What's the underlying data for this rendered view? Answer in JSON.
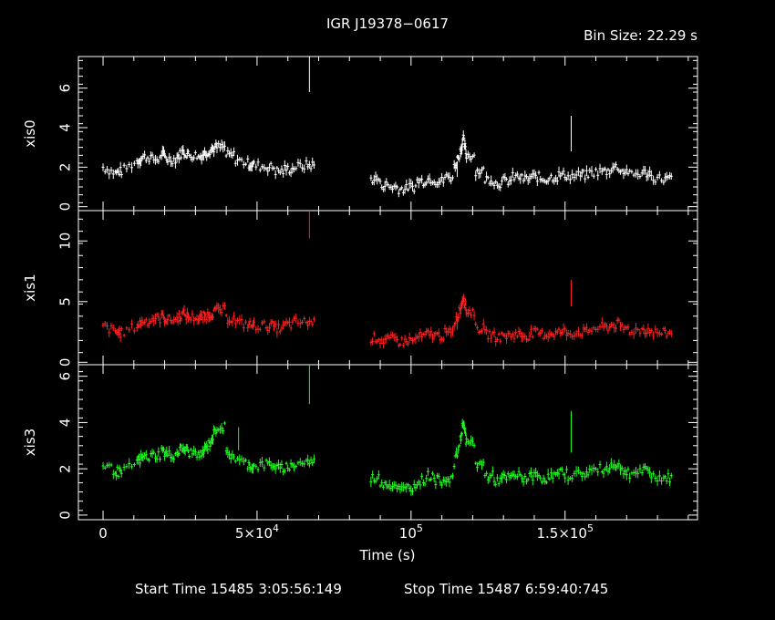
{
  "chart_data": {
    "type": "scatter",
    "title": "IGR J19378−0617",
    "bin_size_label": "Bin Size: 22.29 s",
    "xlabel": "Time (s)",
    "xlim": [
      -8000,
      193000
    ],
    "x_ticks": [
      {
        "value": 0,
        "label": "0"
      },
      {
        "value": 50000,
        "label": "5×10",
        "sup": "4"
      },
      {
        "value": 100000,
        "label": "10",
        "sup": "5"
      },
      {
        "value": 150000,
        "label": "1.5×10",
        "sup": "5"
      }
    ],
    "footer": {
      "start_label": "Start Time 15485  3:05:56:149",
      "stop_label": "Stop Time 15487  6:59:40:745"
    },
    "panels": [
      {
        "ylabel": "xis0",
        "color": "#ffffff",
        "ylim": [
          -0.2,
          7.6
        ],
        "yticks": [
          0,
          2,
          4,
          6
        ],
        "gap_start": 67000,
        "gap_end": 86000,
        "segments": [
          {
            "x": 0,
            "y": 2.0
          },
          {
            "x": 4000,
            "y": 1.7
          },
          {
            "x": 6000,
            "y": 1.8
          },
          {
            "x": 11000,
            "y": 2.3
          },
          {
            "x": 13000,
            "y": 2.5
          },
          {
            "x": 16000,
            "y": 2.4
          },
          {
            "x": 19000,
            "y": 2.7
          },
          {
            "x": 21000,
            "y": 2.4
          },
          {
            "x": 24000,
            "y": 2.5
          },
          {
            "x": 26000,
            "y": 2.8
          },
          {
            "x": 28000,
            "y": 2.6
          },
          {
            "x": 31000,
            "y": 2.5
          },
          {
            "x": 33000,
            "y": 2.7
          },
          {
            "x": 35000,
            "y": 2.9
          },
          {
            "x": 37000,
            "y": 3.0
          },
          {
            "x": 40000,
            "y": 2.6
          },
          {
            "x": 43000,
            "y": 2.4
          },
          {
            "x": 47000,
            "y": 2.2
          },
          {
            "x": 49000,
            "y": 2.1
          },
          {
            "x": 53000,
            "y": 2.0
          },
          {
            "x": 56000,
            "y": 1.8
          },
          {
            "x": 59000,
            "y": 1.9
          },
          {
            "x": 62000,
            "y": 2.0
          },
          {
            "x": 66000,
            "y": 2.1
          },
          {
            "x": 87000,
            "y": 1.4
          },
          {
            "x": 90000,
            "y": 1.1
          },
          {
            "x": 93000,
            "y": 1.0
          },
          {
            "x": 96000,
            "y": 0.9
          },
          {
            "x": 99000,
            "y": 1.0
          },
          {
            "x": 102000,
            "y": 1.3
          },
          {
            "x": 105000,
            "y": 1.4
          },
          {
            "x": 108000,
            "y": 1.3
          },
          {
            "x": 111000,
            "y": 1.5
          },
          {
            "x": 114000,
            "y": 2.0
          },
          {
            "x": 116000,
            "y": 2.8
          },
          {
            "x": 117000,
            "y": 3.4
          },
          {
            "x": 118000,
            "y": 2.6
          },
          {
            "x": 121000,
            "y": 1.8
          },
          {
            "x": 124000,
            "y": 1.4
          },
          {
            "x": 127000,
            "y": 1.2
          },
          {
            "x": 130000,
            "y": 1.3
          },
          {
            "x": 133000,
            "y": 1.5
          },
          {
            "x": 136000,
            "y": 1.4
          },
          {
            "x": 139000,
            "y": 1.5
          },
          {
            "x": 142000,
            "y": 1.4
          },
          {
            "x": 145000,
            "y": 1.5
          },
          {
            "x": 148000,
            "y": 1.6
          },
          {
            "x": 151000,
            "y": 1.5
          },
          {
            "x": 155000,
            "y": 1.6
          },
          {
            "x": 158000,
            "y": 1.7
          },
          {
            "x": 162000,
            "y": 1.8
          },
          {
            "x": 165000,
            "y": 2.0
          },
          {
            "x": 168000,
            "y": 1.8
          },
          {
            "x": 171000,
            "y": 1.6
          },
          {
            "x": 175000,
            "y": 1.7
          },
          {
            "x": 178000,
            "y": 1.5
          },
          {
            "x": 182000,
            "y": 1.4
          }
        ],
        "spikes": [
          {
            "x": 67000,
            "y_low": 5.8,
            "y_high": 7.6
          },
          {
            "x": 152000,
            "y_low": 2.8,
            "y_high": 4.6
          },
          {
            "x": 115000,
            "y_low": 1.5,
            "y_high": 2.3
          }
        ]
      },
      {
        "ylabel": "xis1",
        "color": "#ff2020",
        "ylim": [
          -0.2,
          12.5
        ],
        "yticks": [
          0,
          5,
          10
        ],
        "gap_start": 67000,
        "gap_end": 86000,
        "segments": [
          {
            "x": 0,
            "y": 3.0
          },
          {
            "x": 4000,
            "y": 2.5
          },
          {
            "x": 6000,
            "y": 2.4
          },
          {
            "x": 11000,
            "y": 3.0
          },
          {
            "x": 13000,
            "y": 3.4
          },
          {
            "x": 16000,
            "y": 3.6
          },
          {
            "x": 19000,
            "y": 3.8
          },
          {
            "x": 21000,
            "y": 3.5
          },
          {
            "x": 24000,
            "y": 3.6
          },
          {
            "x": 26000,
            "y": 4.0
          },
          {
            "x": 28000,
            "y": 3.7
          },
          {
            "x": 31000,
            "y": 3.5
          },
          {
            "x": 33000,
            "y": 3.8
          },
          {
            "x": 35000,
            "y": 4.0
          },
          {
            "x": 37000,
            "y": 4.3
          },
          {
            "x": 40000,
            "y": 3.6
          },
          {
            "x": 43000,
            "y": 3.3
          },
          {
            "x": 47000,
            "y": 3.1
          },
          {
            "x": 49000,
            "y": 3.0
          },
          {
            "x": 53000,
            "y": 3.0
          },
          {
            "x": 56000,
            "y": 2.8
          },
          {
            "x": 59000,
            "y": 3.1
          },
          {
            "x": 62000,
            "y": 3.3
          },
          {
            "x": 66000,
            "y": 3.3
          },
          {
            "x": 87000,
            "y": 2.0
          },
          {
            "x": 90000,
            "y": 1.8
          },
          {
            "x": 93000,
            "y": 1.9
          },
          {
            "x": 96000,
            "y": 1.7
          },
          {
            "x": 99000,
            "y": 1.8
          },
          {
            "x": 102000,
            "y": 2.1
          },
          {
            "x": 105000,
            "y": 2.3
          },
          {
            "x": 108000,
            "y": 2.2
          },
          {
            "x": 111000,
            "y": 2.4
          },
          {
            "x": 114000,
            "y": 3.2
          },
          {
            "x": 116000,
            "y": 4.4
          },
          {
            "x": 117000,
            "y": 5.5
          },
          {
            "x": 118000,
            "y": 4.2
          },
          {
            "x": 121000,
            "y": 2.8
          },
          {
            "x": 124000,
            "y": 2.3
          },
          {
            "x": 127000,
            "y": 2.1
          },
          {
            "x": 130000,
            "y": 2.2
          },
          {
            "x": 133000,
            "y": 2.3
          },
          {
            "x": 136000,
            "y": 2.2
          },
          {
            "x": 139000,
            "y": 2.4
          },
          {
            "x": 142000,
            "y": 2.3
          },
          {
            "x": 145000,
            "y": 2.4
          },
          {
            "x": 148000,
            "y": 2.5
          },
          {
            "x": 151000,
            "y": 2.4
          },
          {
            "x": 155000,
            "y": 2.5
          },
          {
            "x": 158000,
            "y": 2.7
          },
          {
            "x": 162000,
            "y": 2.9
          },
          {
            "x": 165000,
            "y": 3.1
          },
          {
            "x": 168000,
            "y": 2.8
          },
          {
            "x": 171000,
            "y": 2.6
          },
          {
            "x": 175000,
            "y": 2.7
          },
          {
            "x": 178000,
            "y": 2.5
          },
          {
            "x": 182000,
            "y": 2.4
          }
        ],
        "spikes": [
          {
            "x": 67000,
            "y_low": 10.2,
            "y_high": 12.5
          },
          {
            "x": 152000,
            "y_low": 4.6,
            "y_high": 6.8
          },
          {
            "x": 115000,
            "y_low": 2.7,
            "y_high": 3.6
          }
        ]
      },
      {
        "ylabel": "xis3",
        "color": "#20ff20",
        "ylim": [
          -0.2,
          6.5
        ],
        "yticks": [
          0,
          2,
          4,
          6
        ],
        "gap_start": 67000,
        "gap_end": 86000,
        "segments": [
          {
            "x": 0,
            "y": 2.2
          },
          {
            "x": 4000,
            "y": 1.9
          },
          {
            "x": 6000,
            "y": 1.8
          },
          {
            "x": 11000,
            "y": 2.3
          },
          {
            "x": 13000,
            "y": 2.5
          },
          {
            "x": 16000,
            "y": 2.6
          },
          {
            "x": 19000,
            "y": 2.8
          },
          {
            "x": 21000,
            "y": 2.6
          },
          {
            "x": 24000,
            "y": 2.7
          },
          {
            "x": 26000,
            "y": 2.9
          },
          {
            "x": 28000,
            "y": 2.7
          },
          {
            "x": 31000,
            "y": 2.5
          },
          {
            "x": 33000,
            "y": 2.8
          },
          {
            "x": 35000,
            "y": 3.2
          },
          {
            "x": 37000,
            "y": 3.8
          },
          {
            "x": 40000,
            "y": 2.6
          },
          {
            "x": 43000,
            "y": 2.4
          },
          {
            "x": 47000,
            "y": 2.2
          },
          {
            "x": 49000,
            "y": 2.1
          },
          {
            "x": 53000,
            "y": 2.2
          },
          {
            "x": 56000,
            "y": 2.0
          },
          {
            "x": 59000,
            "y": 2.1
          },
          {
            "x": 62000,
            "y": 2.2
          },
          {
            "x": 66000,
            "y": 2.3
          },
          {
            "x": 87000,
            "y": 1.6
          },
          {
            "x": 90000,
            "y": 1.4
          },
          {
            "x": 93000,
            "y": 1.3
          },
          {
            "x": 96000,
            "y": 1.1
          },
          {
            "x": 99000,
            "y": 1.2
          },
          {
            "x": 102000,
            "y": 1.5
          },
          {
            "x": 105000,
            "y": 1.7
          },
          {
            "x": 108000,
            "y": 1.5
          },
          {
            "x": 111000,
            "y": 1.6
          },
          {
            "x": 114000,
            "y": 2.2
          },
          {
            "x": 116000,
            "y": 3.2
          },
          {
            "x": 117000,
            "y": 4.1
          },
          {
            "x": 118000,
            "y": 3.1
          },
          {
            "x": 121000,
            "y": 2.2
          },
          {
            "x": 124000,
            "y": 1.7
          },
          {
            "x": 127000,
            "y": 1.5
          },
          {
            "x": 130000,
            "y": 1.6
          },
          {
            "x": 133000,
            "y": 1.7
          },
          {
            "x": 136000,
            "y": 1.6
          },
          {
            "x": 139000,
            "y": 1.7
          },
          {
            "x": 142000,
            "y": 1.6
          },
          {
            "x": 145000,
            "y": 1.7
          },
          {
            "x": 148000,
            "y": 1.8
          },
          {
            "x": 151000,
            "y": 1.7
          },
          {
            "x": 155000,
            "y": 1.8
          },
          {
            "x": 158000,
            "y": 1.9
          },
          {
            "x": 162000,
            "y": 2.0
          },
          {
            "x": 165000,
            "y": 2.2
          },
          {
            "x": 168000,
            "y": 1.9
          },
          {
            "x": 171000,
            "y": 1.8
          },
          {
            "x": 175000,
            "y": 1.9
          },
          {
            "x": 178000,
            "y": 1.7
          },
          {
            "x": 182000,
            "y": 1.6
          }
        ],
        "spikes": [
          {
            "x": 67000,
            "y_low": 4.8,
            "y_high": 6.5
          },
          {
            "x": 152000,
            "y_low": 2.7,
            "y_high": 4.5
          },
          {
            "x": 44000,
            "y_low": 2.8,
            "y_high": 3.8
          }
        ]
      }
    ]
  }
}
